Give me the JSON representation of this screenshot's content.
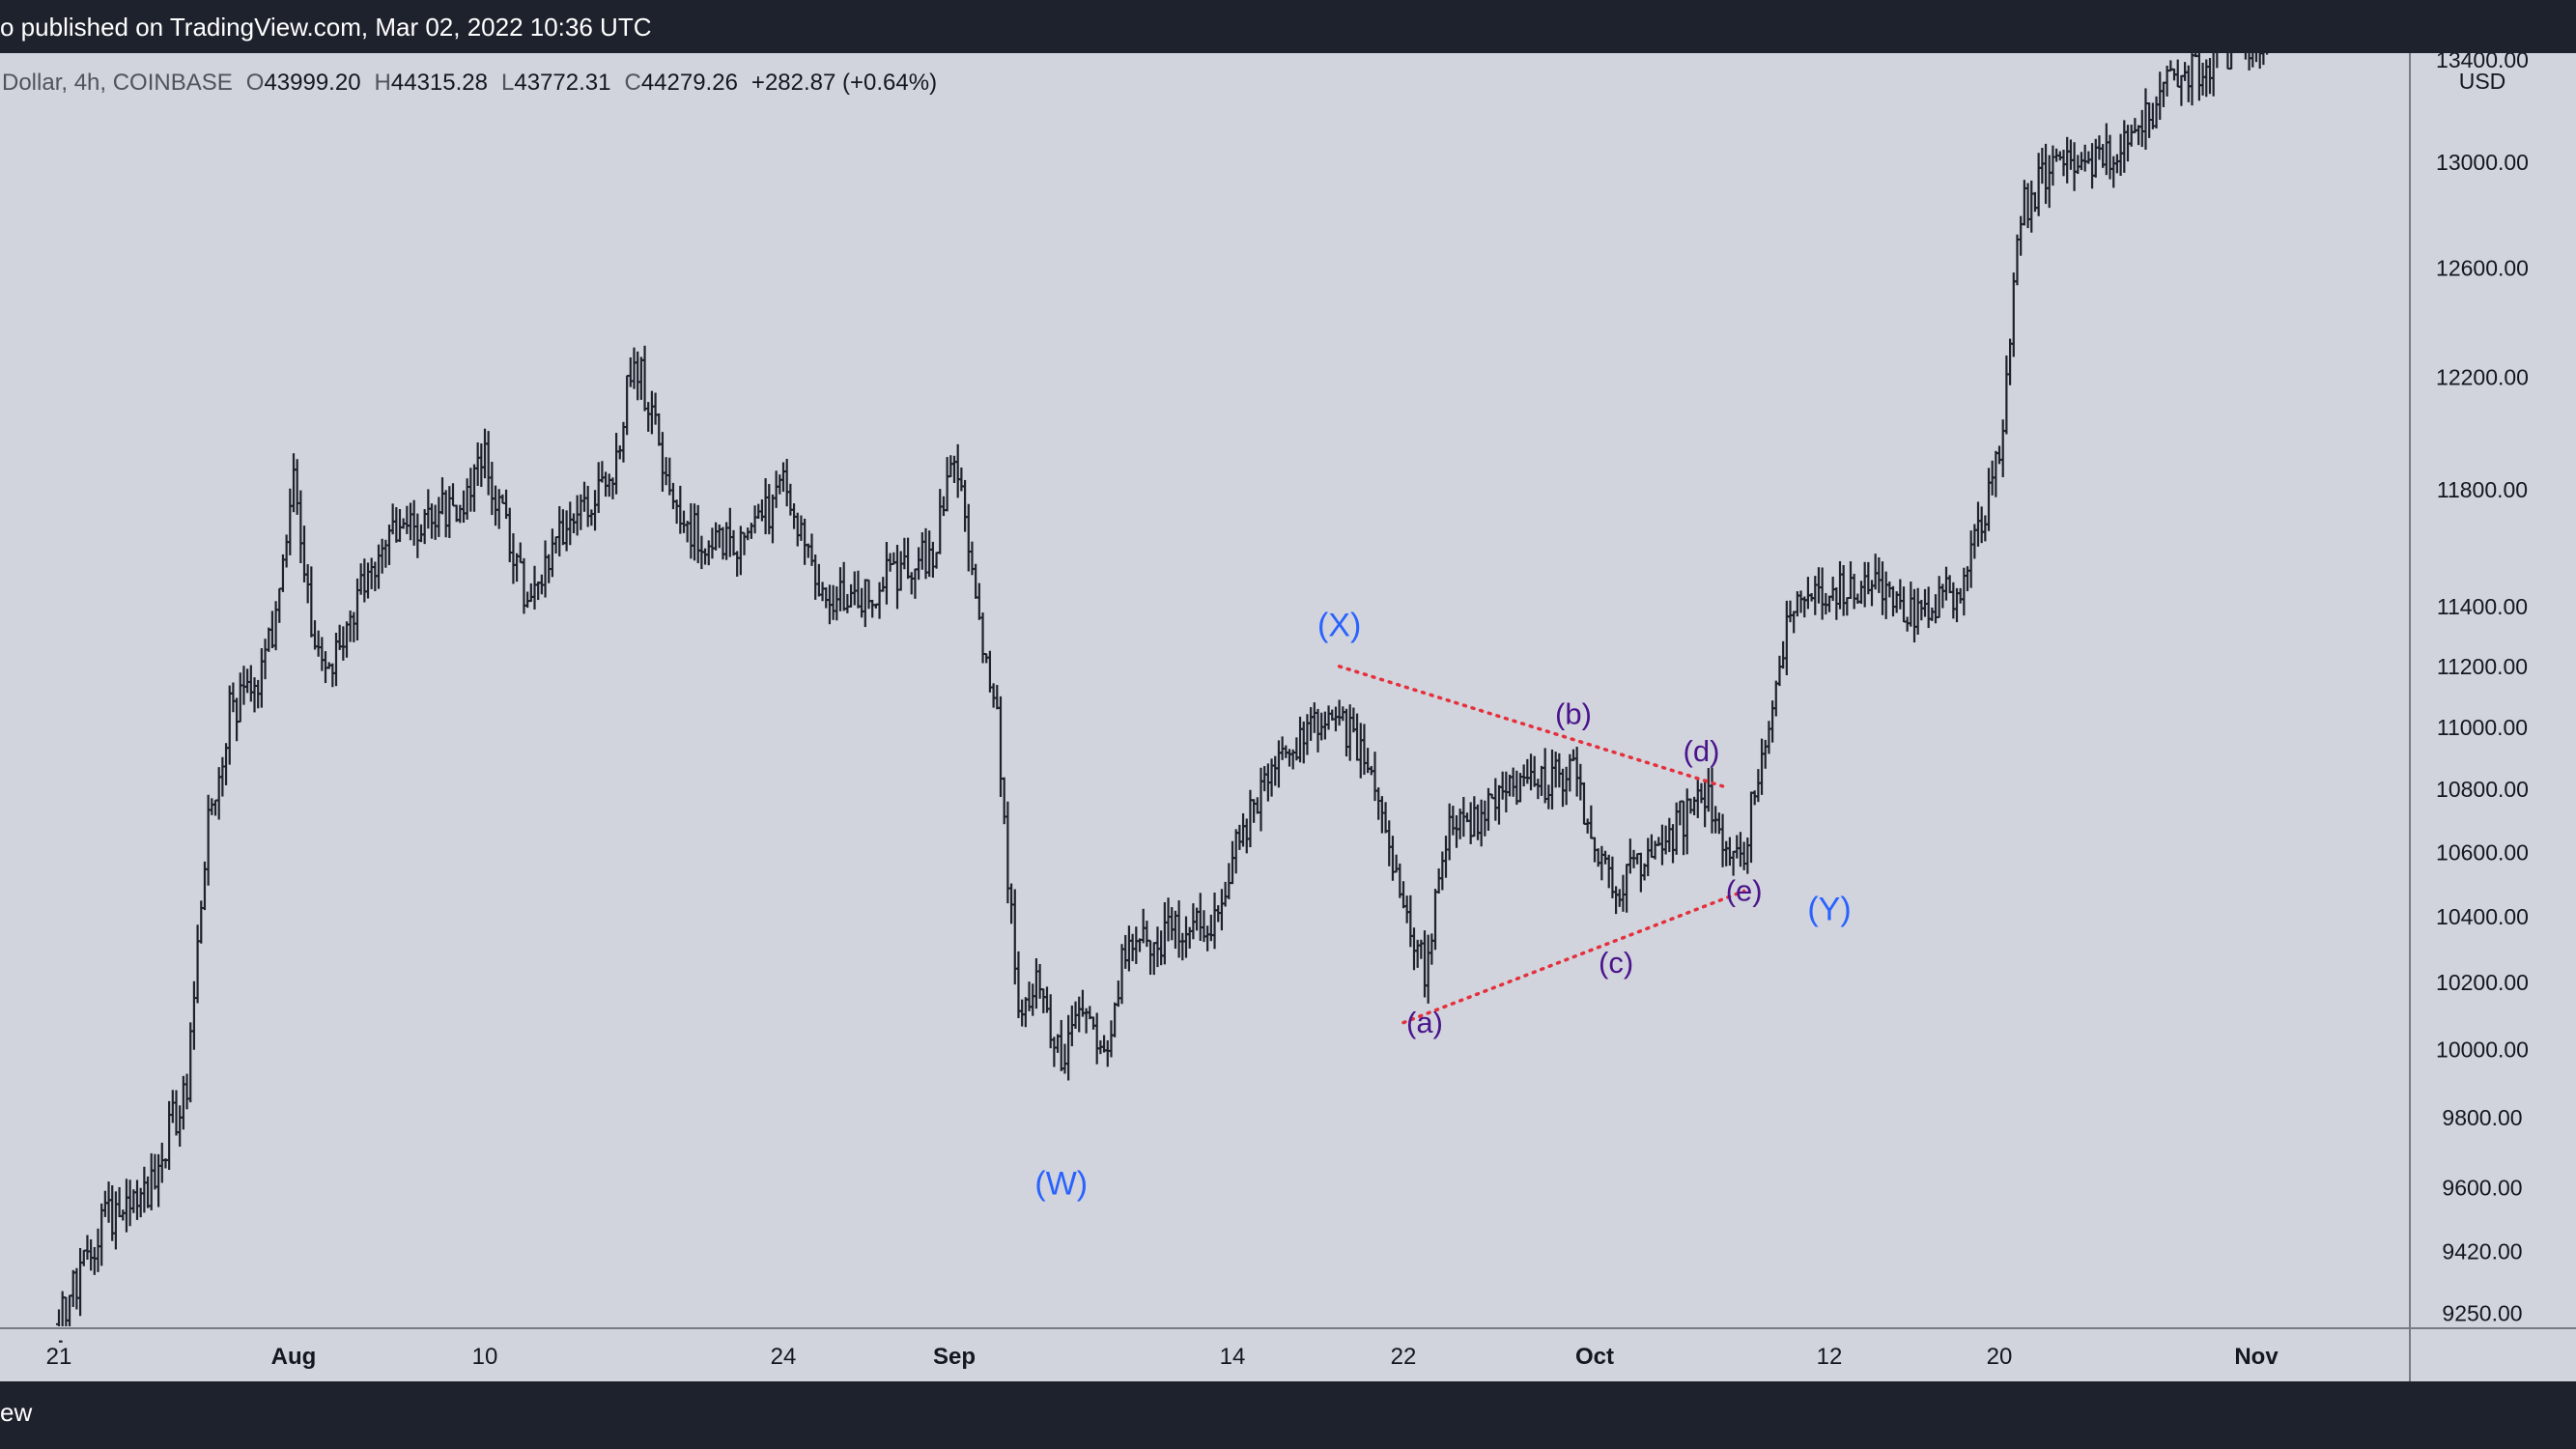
{
  "header": {
    "publish_text": "o published on TradingView.com, Mar 02, 2022 10:36 UTC"
  },
  "footer": {
    "brand_text": "ew"
  },
  "legend": {
    "symbol_text": "Dollar, 4h, COINBASE",
    "o_label": "O",
    "o_value": "43999.20",
    "h_label": "H",
    "h_value": "44315.28",
    "l_label": "L",
    "l_value": "43772.31",
    "c_label": "C",
    "c_value": "44279.26",
    "change": "+282.87 (+0.64%)"
  },
  "colors": {
    "background": "#d1d4dc",
    "bar_color": "#1e222d",
    "primary_wave_label": "#2962ff",
    "sub_wave_label": "#4a148c",
    "trendline": "#e5303c",
    "chrome": "#1e222d"
  },
  "chart_data": {
    "type": "ohlc_bar",
    "interval": "4h",
    "exchange": "COINBASE",
    "currency_label": "USD",
    "y_scale": "log",
    "ylim": [
      9180,
      13450
    ],
    "y_ticks": [
      "13400.00",
      "13000.00",
      "12600.00",
      "12200.00",
      "11800.00",
      "11400.00",
      "11200.00",
      "11000.00",
      "10800.00",
      "10600.00",
      "10400.00",
      "10200.00",
      "10000.00",
      "9800.00",
      "9600.00",
      "9420.00",
      "9250.00"
    ],
    "x_range": [
      "2020-07-21",
      "2020-11-05"
    ],
    "x_ticks": [
      {
        "label": "21",
        "date": "2020-07-21",
        "bold": false
      },
      {
        "label": "Aug",
        "date": "2020-08-01",
        "bold": true
      },
      {
        "label": "10",
        "date": "2020-08-10",
        "bold": false
      },
      {
        "label": "24",
        "date": "2020-08-24",
        "bold": false
      },
      {
        "label": "Sep",
        "date": "2020-09-01",
        "bold": true
      },
      {
        "label": "14",
        "date": "2020-09-14",
        "bold": false
      },
      {
        "label": "22",
        "date": "2020-09-22",
        "bold": false
      },
      {
        "label": "Oct",
        "date": "2020-10-01",
        "bold": true
      },
      {
        "label": "12",
        "date": "2020-10-12",
        "bold": false
      },
      {
        "label": "20",
        "date": "2020-10-20",
        "bold": false
      },
      {
        "label": "Nov",
        "date": "2020-11-01",
        "bold": true
      }
    ],
    "price_path": [
      {
        "date": "2020-07-21",
        "close": 9220
      },
      {
        "date": "2020-07-23",
        "close": 9500
      },
      {
        "date": "2020-07-25",
        "close": 9560
      },
      {
        "date": "2020-07-27",
        "close": 9900
      },
      {
        "date": "2020-07-28",
        "close": 10700
      },
      {
        "date": "2020-07-29",
        "close": 11050
      },
      {
        "date": "2020-07-30",
        "close": 11100
      },
      {
        "date": "2020-07-31",
        "close": 11300
      },
      {
        "date": "2020-08-01",
        "close": 11850
      },
      {
        "date": "2020-08-02",
        "close": 11200
      },
      {
        "date": "2020-08-03",
        "close": 11250
      },
      {
        "date": "2020-08-05",
        "close": 11600
      },
      {
        "date": "2020-08-07",
        "close": 11700
      },
      {
        "date": "2020-08-09",
        "close": 11750
      },
      {
        "date": "2020-08-10",
        "close": 11900
      },
      {
        "date": "2020-08-12",
        "close": 11400
      },
      {
        "date": "2020-08-14",
        "close": 11700
      },
      {
        "date": "2020-08-16",
        "close": 11850
      },
      {
        "date": "2020-08-17",
        "close": 12300
      },
      {
        "date": "2020-08-18",
        "close": 12000
      },
      {
        "date": "2020-08-19",
        "close": 11700
      },
      {
        "date": "2020-08-21",
        "close": 11600
      },
      {
        "date": "2020-08-22",
        "close": 11600
      },
      {
        "date": "2020-08-24",
        "close": 11800
      },
      {
        "date": "2020-08-26",
        "close": 11400
      },
      {
        "date": "2020-08-28",
        "close": 11450
      },
      {
        "date": "2020-08-31",
        "close": 11600
      },
      {
        "date": "2020-09-01",
        "close": 11900
      },
      {
        "date": "2020-09-02",
        "close": 11450
      },
      {
        "date": "2020-09-03",
        "close": 11000
      },
      {
        "date": "2020-09-04",
        "close": 10100
      },
      {
        "date": "2020-09-05",
        "close": 10200
      },
      {
        "date": "2020-09-06",
        "close": 9950
      },
      {
        "date": "2020-09-07",
        "close": 10150
      },
      {
        "date": "2020-09-08",
        "close": 9950
      },
      {
        "date": "2020-09-09",
        "close": 10300
      },
      {
        "date": "2020-09-11",
        "close": 10350
      },
      {
        "date": "2020-09-13",
        "close": 10400
      },
      {
        "date": "2020-09-15",
        "close": 10750
      },
      {
        "date": "2020-09-17",
        "close": 10950
      },
      {
        "date": "2020-09-19",
        "close": 11050
      },
      {
        "date": "2020-09-20",
        "close": 10900
      },
      {
        "date": "2020-09-21",
        "close": 10700
      },
      {
        "date": "2020-09-22",
        "close": 10450
      },
      {
        "date": "2020-09-23",
        "close": 10250
      },
      {
        "date": "2020-09-24",
        "close": 10650
      },
      {
        "date": "2020-09-26",
        "close": 10750
      },
      {
        "date": "2020-09-28",
        "close": 10800
      },
      {
        "date": "2020-09-30",
        "close": 10850
      },
      {
        "date": "2020-10-01",
        "close": 10600
      },
      {
        "date": "2020-10-02",
        "close": 10500
      },
      {
        "date": "2020-10-04",
        "close": 10600
      },
      {
        "date": "2020-10-06",
        "close": 10800
      },
      {
        "date": "2020-10-07",
        "close": 10650
      },
      {
        "date": "2020-10-08",
        "close": 10600
      },
      {
        "date": "2020-10-09",
        "close": 11000
      },
      {
        "date": "2020-10-10",
        "close": 11350
      },
      {
        "date": "2020-10-12",
        "close": 11450
      },
      {
        "date": "2020-10-14",
        "close": 11450
      },
      {
        "date": "2020-10-16",
        "close": 11400
      },
      {
        "date": "2020-10-18",
        "close": 11450
      },
      {
        "date": "2020-10-20",
        "close": 11900
      },
      {
        "date": "2020-10-21",
        "close": 12800
      },
      {
        "date": "2020-10-22",
        "close": 12950
      },
      {
        "date": "2020-10-24",
        "close": 13000
      },
      {
        "date": "2020-10-26",
        "close": 13050
      },
      {
        "date": "2020-10-28",
        "close": 13300
      },
      {
        "date": "2020-10-30",
        "close": 13400
      },
      {
        "date": "2020-11-01",
        "close": 13500
      },
      {
        "date": "2020-11-05",
        "close": 13600
      }
    ],
    "wave_labels": [
      {
        "text": "(X)",
        "degree": "primary",
        "date": "2020-09-19",
        "price": 11300
      },
      {
        "text": "(W)",
        "degree": "primary",
        "date": "2020-09-06",
        "price": 9580
      },
      {
        "text": "(Y)",
        "degree": "primary",
        "date": "2020-10-12",
        "price": 10390
      },
      {
        "text": "(a)",
        "degree": "sub",
        "date": "2020-09-23",
        "price": 10050
      },
      {
        "text": "(b)",
        "degree": "sub",
        "date": "2020-09-30",
        "price": 11010
      },
      {
        "text": "(c)",
        "degree": "sub",
        "date": "2020-10-02",
        "price": 10230
      },
      {
        "text": "(d)",
        "degree": "sub",
        "date": "2020-10-06",
        "price": 10890
      },
      {
        "text": "(e)",
        "degree": "sub",
        "date": "2020-10-08",
        "price": 10450
      }
    ],
    "trendlines": [
      {
        "name": "upper",
        "style": "dotted",
        "from": {
          "date": "2020-09-19",
          "price": 11200
        },
        "to": {
          "date": "2020-10-07",
          "price": 10810
        }
      },
      {
        "name": "lower",
        "style": "dotted",
        "from": {
          "date": "2020-09-22",
          "price": 10080
        },
        "to": {
          "date": "2020-10-08",
          "price": 10480
        }
      }
    ]
  }
}
